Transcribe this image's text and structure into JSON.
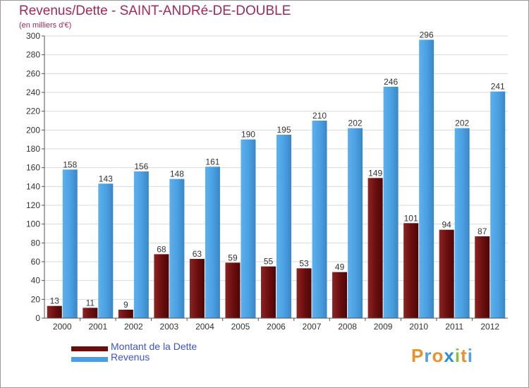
{
  "header": {
    "title": "Revenus/Dette - SAINT-ANDRé-DE-DOUBLE",
    "subtitle": "(en milliers d'€)"
  },
  "legend": {
    "items": [
      {
        "label": "Montant de la Dette",
        "color": "#6e0c0c"
      },
      {
        "label": "Revenus",
        "color": "#4a9fe0"
      }
    ]
  },
  "logo": {
    "text": "Proxiti",
    "colors": [
      "#e8922e",
      "#5aa0d8",
      "#e8922e",
      "#2e8fd0",
      "#8ac040",
      "#e8922e",
      "#5aa0d8"
    ]
  },
  "chart_data": {
    "type": "bar",
    "title": "Revenus/Dette - SAINT-ANDRé-DE-DOUBLE",
    "ylabel": "(en milliers d'€)",
    "categories": [
      "2000",
      "2001",
      "2002",
      "2003",
      "2004",
      "2005",
      "2006",
      "2007",
      "2008",
      "2009",
      "2010",
      "2011",
      "2012"
    ],
    "series": [
      {
        "name": "Montant de la Dette",
        "color": "#7a1a1a",
        "values": [
          13,
          11,
          9,
          68,
          63,
          59,
          55,
          53,
          49,
          149,
          101,
          94,
          87
        ]
      },
      {
        "name": "Revenus",
        "color": "#4a9fe0",
        "values": [
          158,
          143,
          156,
          148,
          161,
          190,
          195,
          210,
          202,
          246,
          296,
          202,
          241
        ]
      }
    ],
    "yticks": [
      0,
      20,
      40,
      60,
      80,
      100,
      120,
      140,
      160,
      180,
      200,
      220,
      240,
      260,
      280,
      300
    ],
    "ylim": [
      0,
      300
    ],
    "grid": true,
    "legend_position": "bottom-left"
  }
}
